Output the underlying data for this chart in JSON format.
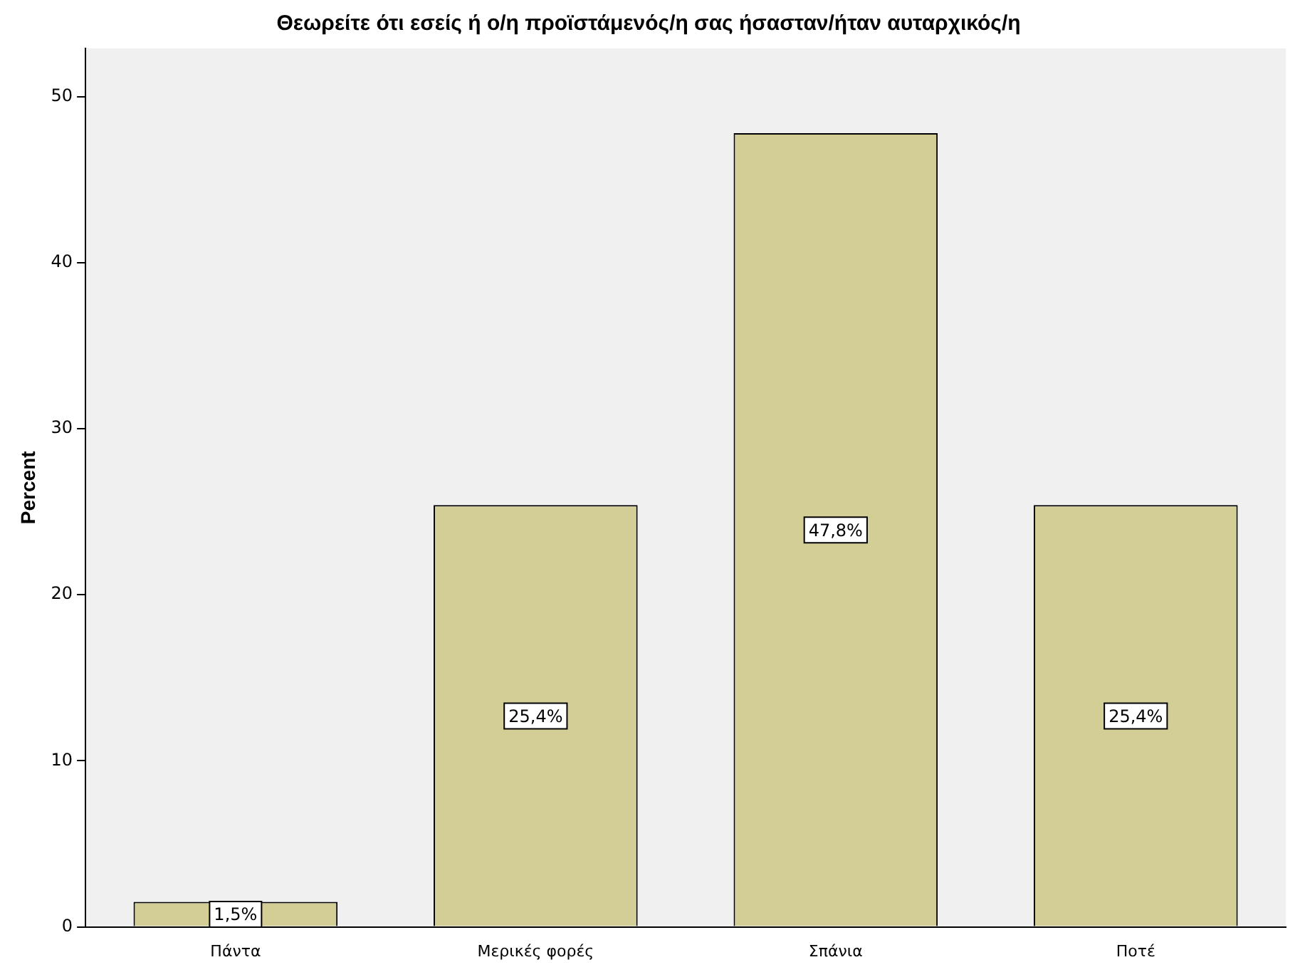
{
  "chart_data": {
    "type": "bar",
    "title": "Θεωρείτε ότι εσείς ή ο/η προϊστάμενός/η σας ήσασταν/ήταν αυταρχικός/η",
    "ylabel": "Percent",
    "categories": [
      "Πάντα",
      "Μερικές φορές",
      "Σπάνια",
      "Ποτέ"
    ],
    "values": [
      1.5,
      25.4,
      47.8,
      25.4
    ],
    "value_labels": [
      "1,5%",
      "25,4%",
      "47,8%",
      "25,4%"
    ],
    "color": "#d3ce96",
    "ylim": [
      0,
      52.9
    ],
    "yticks": [
      0,
      10,
      20,
      30,
      40,
      50
    ],
    "grid": false,
    "legend": false
  }
}
